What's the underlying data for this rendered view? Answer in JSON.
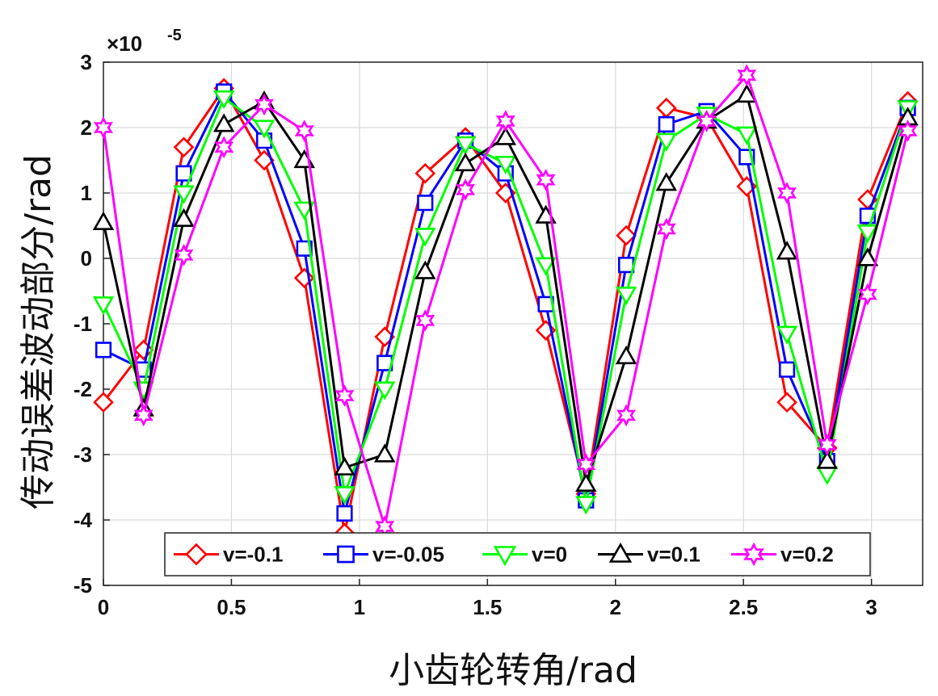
{
  "chart_data": {
    "type": "line",
    "xlabel": "小齿轮转角/rad",
    "ylabel": "传动误差波动部分/rad",
    "exponent_base": "×10",
    "exponent_power": "-5",
    "xlim": [
      0,
      3.2
    ],
    "ylim": [
      -5,
      3
    ],
    "x_ticks": [
      "0",
      "0.5",
      "1",
      "1.5",
      "2",
      "2.5",
      "3"
    ],
    "y_ticks": [
      "3",
      "2",
      "1",
      "0",
      "-1",
      "-2",
      "-3",
      "-4",
      "-5"
    ],
    "grid": true,
    "legend_position": "bottom-center",
    "x": [
      0,
      0.157,
      0.314,
      0.471,
      0.628,
      0.785,
      0.942,
      1.099,
      1.257,
      1.414,
      1.571,
      1.728,
      1.885,
      2.042,
      2.199,
      2.356,
      2.513,
      2.67,
      2.827,
      2.985,
      3.142
    ],
    "series": [
      {
        "name": "v=-0.1",
        "color": "#ff0000",
        "marker": "diamond",
        "values": [
          -2.2,
          -1.4,
          1.7,
          2.6,
          1.5,
          -0.3,
          -4.2,
          -1.2,
          1.3,
          1.85,
          1.0,
          -1.1,
          -3.6,
          0.35,
          2.3,
          2.15,
          1.1,
          -2.2,
          -2.9,
          0.9,
          2.4
        ]
      },
      {
        "name": "v=-0.05",
        "color": "#0000ff",
        "marker": "square",
        "values": [
          -1.4,
          -1.7,
          1.3,
          2.55,
          1.8,
          0.15,
          -3.9,
          -1.6,
          0.85,
          1.8,
          1.3,
          -0.7,
          -3.7,
          -0.1,
          2.05,
          2.25,
          1.55,
          -1.7,
          -3.1,
          0.65,
          2.3
        ]
      },
      {
        "name": "v=0",
        "color": "#00ff00",
        "marker": "triangle-down",
        "values": [
          -0.7,
          -2.0,
          1.0,
          2.45,
          2.0,
          0.75,
          -3.6,
          -2.0,
          0.35,
          1.75,
          1.45,
          -0.1,
          -3.75,
          -0.55,
          1.8,
          2.2,
          1.9,
          -1.15,
          -3.3,
          0.4,
          2.3
        ]
      },
      {
        "name": "v=0.1",
        "color": "#000000",
        "marker": "triangle-up",
        "values": [
          0.55,
          -2.3,
          0.6,
          2.05,
          2.4,
          1.5,
          -3.2,
          -3.0,
          -0.2,
          1.45,
          1.85,
          0.65,
          -3.45,
          -1.5,
          1.15,
          2.1,
          2.5,
          0.1,
          -3.1,
          0.0,
          2.15
        ]
      },
      {
        "name": "v=0.2",
        "color": "#ff00ff",
        "marker": "star",
        "values": [
          2.0,
          -2.4,
          0.05,
          1.7,
          2.35,
          1.95,
          -2.1,
          -4.1,
          -0.95,
          1.05,
          2.1,
          1.2,
          -3.15,
          -2.4,
          0.45,
          2.1,
          2.8,
          1.0,
          -2.85,
          -0.55,
          1.95
        ]
      }
    ]
  }
}
